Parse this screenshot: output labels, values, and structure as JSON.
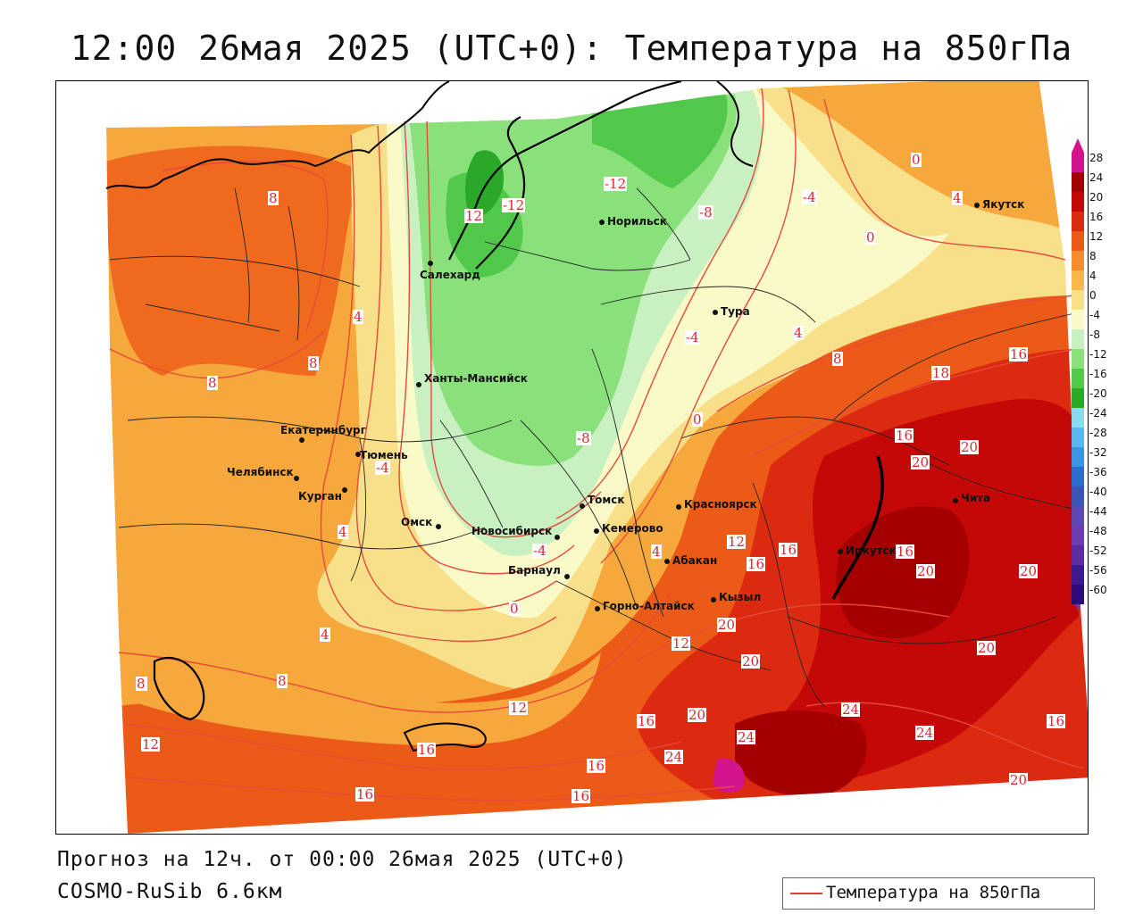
{
  "title": "12:00 26мая 2025 (UTC+0): Температура на 850гПа",
  "footer": {
    "forecast": "Прогноз на 12ч. от 00:00 26мая 2025 (UTC+0)",
    "model": "COSMO-RuSib 6.6км"
  },
  "legend": {
    "label": "Температура на 850гПа",
    "line_color": "#e23b3b"
  },
  "colorbar": {
    "labels": [
      "28",
      "24",
      "20",
      "16",
      "12",
      "8",
      "4",
      "0",
      "-4",
      "-8",
      "-12",
      "-16",
      "-20",
      "-24",
      "-28",
      "-32",
      "-36",
      "-40",
      "-44",
      "-48",
      "-52",
      "-56",
      "-60"
    ],
    "colors": [
      "#d4148c",
      "#a50000",
      "#c40808",
      "#dc2a10",
      "#ec5a18",
      "#f68c2c",
      "#f8b84a",
      "#f8e08a",
      "#fafac8",
      "#c8f0c0",
      "#8ae07a",
      "#52c84a",
      "#2aa82a",
      "#8cd8ec",
      "#5cb8ec",
      "#3c94e0",
      "#2c6ccc",
      "#3c54b4",
      "#5c48b0",
      "#6c3cb0",
      "#5c2ca0",
      "#3c1c8c",
      "#2c0c78"
    ]
  },
  "cities": [
    {
      "name": "Якутск"
    },
    {
      "name": "Норильск"
    },
    {
      "name": "Салехард"
    },
    {
      "name": "Тура"
    },
    {
      "name": "Ханты-Мансийск"
    },
    {
      "name": "Екатеринбург"
    },
    {
      "name": "Тюмень"
    },
    {
      "name": "Челябинск"
    },
    {
      "name": "Курган"
    },
    {
      "name": "Омск"
    },
    {
      "name": "Новосибирск"
    },
    {
      "name": "Томск"
    },
    {
      "name": "Кемерово"
    },
    {
      "name": "Красноярск"
    },
    {
      "name": "Барнаул"
    },
    {
      "name": "Абакан"
    },
    {
      "name": "Горно-Алтайск"
    },
    {
      "name": "Кызыл"
    },
    {
      "name": "Иркутск"
    },
    {
      "name": "Чита"
    }
  ],
  "contour_labels": [
    "8",
    "12",
    "-12",
    "-12",
    "-8",
    "-4",
    "0",
    "0",
    "4",
    "4",
    "8",
    "4",
    "8",
    "8",
    "-4",
    "-4",
    "-8",
    "0",
    "16",
    "20",
    "20",
    "16",
    "18",
    "16",
    "12",
    "16",
    "16",
    "20",
    "20",
    "20",
    "-4",
    "0",
    "4",
    "4",
    "12",
    "20",
    "4",
    "8",
    "8",
    "12",
    "16",
    "20",
    "24",
    "16",
    "24",
    "24",
    "12",
    "16",
    "16",
    "16",
    "20",
    "20",
    "8",
    "24",
    "16"
  ]
}
